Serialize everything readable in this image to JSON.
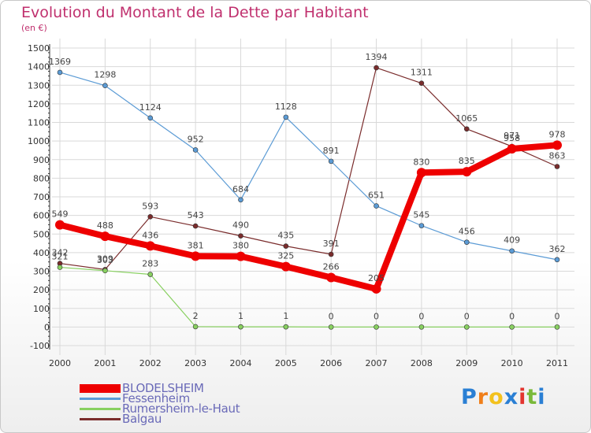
{
  "chart_data": {
    "type": "line",
    "title": "Evolution du Montant de la Dette par Habitant",
    "subtitle": "(en €)",
    "x": [
      "2000",
      "2001",
      "2002",
      "2003",
      "2004",
      "2005",
      "2006",
      "2007",
      "2008",
      "2009",
      "2010",
      "2011"
    ],
    "ylim": [
      -100,
      1500
    ],
    "yticks": [
      -100,
      0,
      100,
      200,
      300,
      400,
      500,
      600,
      700,
      800,
      900,
      1000,
      1100,
      1200,
      1300,
      1400,
      1500
    ],
    "grid": true,
    "legend_position": "bottom-left",
    "series": [
      {
        "name": "BLODELSHEIM",
        "color": "#ee0000",
        "emphasis": true,
        "values": [
          549,
          488,
          436,
          381,
          380,
          325,
          266,
          205,
          830,
          835,
          958,
          978
        ],
        "labels": [
          "549",
          "488",
          "436",
          "381",
          "380",
          "325",
          "266",
          "205",
          "830",
          "835",
          "958",
          "978"
        ]
      },
      {
        "name": "Fessenheim",
        "color": "#5b9bd5",
        "values": [
          1369,
          1298,
          1124,
          952,
          684,
          1128,
          891,
          651,
          545,
          456,
          409,
          362
        ],
        "labels": [
          "1369",
          "1298",
          "1124",
          "952",
          "684",
          "1128",
          "891",
          "651",
          "545",
          "456",
          "409",
          "362"
        ]
      },
      {
        "name": "Rumersheim-le-Haut",
        "color": "#88d060",
        "values": [
          321,
          303,
          283,
          2,
          1,
          1,
          0,
          0,
          0,
          0,
          0,
          0
        ],
        "labels": [
          "321",
          "303",
          "283",
          "2",
          "1",
          "1",
          "0",
          "0",
          "0",
          "0",
          "0",
          "0"
        ]
      },
      {
        "name": "Balgau",
        "color": "#7a2c2c",
        "values": [
          342,
          309,
          593,
          543,
          490,
          435,
          391,
          1394,
          1311,
          1065,
          971,
          863
        ],
        "labels": [
          "342",
          "309",
          "593",
          "543",
          "490",
          "435",
          "391",
          "1394",
          "1311",
          "1065",
          "971",
          "863"
        ]
      }
    ]
  },
  "branding": {
    "logo_letters": [
      "P",
      "r",
      "o",
      "x",
      "i",
      "t",
      "i"
    ],
    "logo_colors": [
      "#2a7fd4",
      "#f07f1a",
      "#f3c11d",
      "#2a7fd4",
      "#e3342f",
      "#7ab93a",
      "#2a7fd4"
    ]
  }
}
